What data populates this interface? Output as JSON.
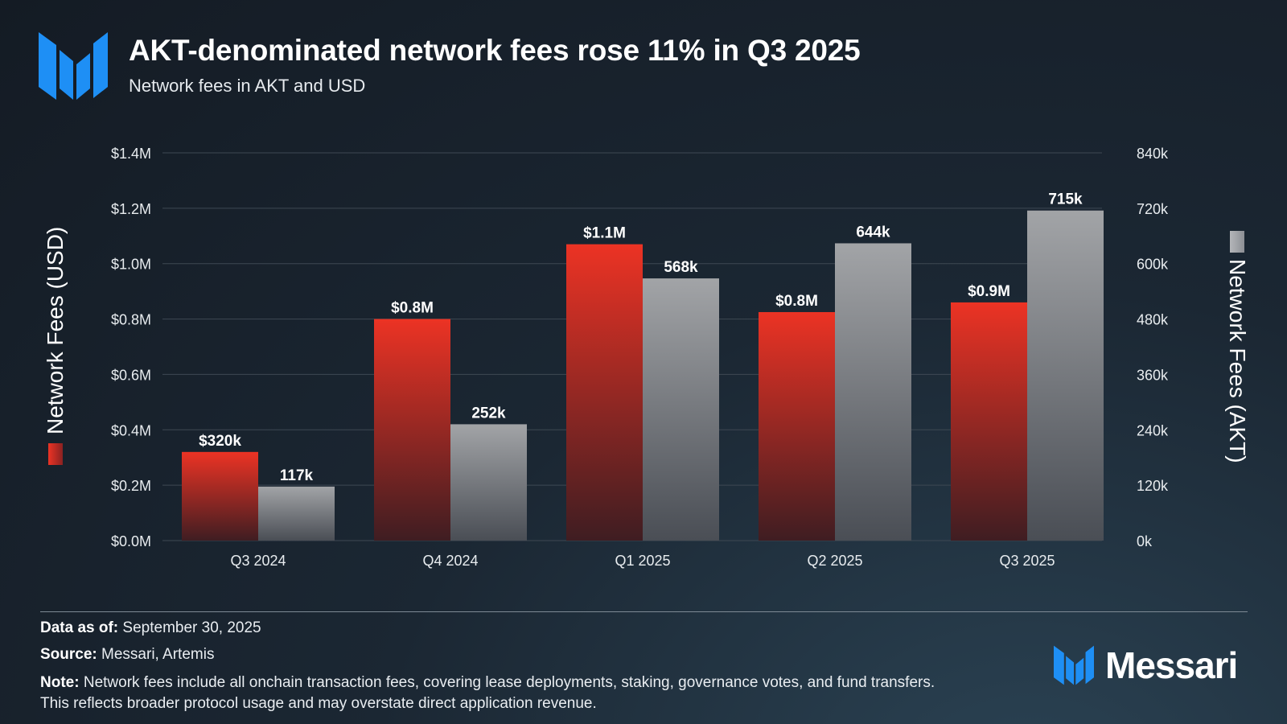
{
  "header": {
    "title": "AKT-denominated network fees rose 11% in Q3 2025",
    "subtitle": "Network fees in AKT and USD"
  },
  "colors": {
    "usd_bar_top": "#ec3324",
    "usd_bar_bottom": "#3f1d22",
    "akt_bar_top": "#a2a4a7",
    "akt_bar_bottom": "#4a4e55",
    "accent_blue": "#1e8ff5",
    "grid": "#3e4853"
  },
  "logo": {
    "icon": "messari-m-icon"
  },
  "chart_data": {
    "type": "bar",
    "categories": [
      "Q3 2024",
      "Q4 2024",
      "Q1 2025",
      "Q2 2025",
      "Q3 2025"
    ],
    "series": [
      {
        "name": "Network Fees (USD)",
        "axis": "left",
        "values": [
          320000,
          800000,
          1070000,
          825000,
          860000
        ],
        "labels": [
          "$320k",
          "$0.8M",
          "$1.1M",
          "$0.8M",
          "$0.9M"
        ]
      },
      {
        "name": "Network Fees (AKT)",
        "axis": "right",
        "values": [
          117000,
          252000,
          568000,
          644000,
          715000
        ],
        "labels": [
          "117k",
          "252k",
          "568k",
          "644k",
          "715k"
        ]
      }
    ],
    "y_left": {
      "label": "Network Fees (USD)",
      "range": [
        0,
        1400000
      ],
      "ticks": [
        "$0.0M",
        "$0.2M",
        "$0.4M",
        "$0.6M",
        "$0.8M",
        "$1.0M",
        "$1.2M",
        "$1.4M"
      ]
    },
    "y_right": {
      "label": "Network Fees (AKT)",
      "range": [
        0,
        840000
      ],
      "ticks": [
        "0k",
        "120k",
        "240k",
        "360k",
        "480k",
        "600k",
        "720k",
        "840k"
      ]
    },
    "grid": true
  },
  "footer": {
    "data_as_of_label": "Data as of:",
    "data_as_of_value": "September  30, 2025",
    "source_label": "Source:",
    "source_value": "Messari, Artemis",
    "note_label": "Note:",
    "note_value": "Network fees include all onchain transaction fees, covering lease deployments, staking, governance votes, and fund transfers. This reflects broader protocol usage and may overstate direct application revenue.",
    "brand": "Messari",
    "brand_icon": "messari-m-icon"
  }
}
